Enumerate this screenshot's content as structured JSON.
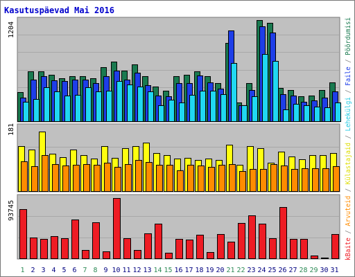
{
  "title": "Kasutuspäevad Mai 2016",
  "chart_data": {
    "type": "bar",
    "categories": [
      "1",
      "2",
      "3",
      "4",
      "5",
      "6",
      "7",
      "8",
      "9",
      "10",
      "11",
      "12",
      "13",
      "14",
      "15",
      "16",
      "17",
      "18",
      "19",
      "20",
      "21",
      "22",
      "23",
      "24",
      "25",
      "26",
      "27",
      "28",
      "29",
      "30",
      "31"
    ],
    "weekend_days": [
      "1",
      "7",
      "8",
      "14",
      "15",
      "21",
      "22",
      "28",
      "29"
    ],
    "panels": [
      {
        "name": "top",
        "axis_max_label": "1204",
        "ylim": [
          0,
          1204
        ],
        "series": [
          {
            "name": "Pöördumisi",
            "color": "#1a7a50",
            "values": [
              355,
              600,
              600,
              560,
              520,
              540,
              540,
              520,
              650,
              710,
              610,
              680,
              540,
              420,
              370,
              540,
              560,
              600,
              540,
              460,
              930,
              230,
              460,
              1200,
              1170,
              400,
              380,
              300,
              310,
              380,
              470
            ]
          },
          {
            "name": "Faile",
            "color": "#1e3ee8",
            "values": [
              290,
              500,
              540,
              490,
              480,
              500,
              500,
              460,
              540,
              610,
              500,
              580,
              430,
              310,
              300,
              460,
              460,
              550,
              470,
              390,
              1080,
              200,
              380,
              1130,
              1060,
              330,
              310,
              240,
              250,
              290,
              360
            ]
          },
          {
            "name": "Lehekülgi",
            "color": "#20d8f2",
            "values": [
              240,
              270,
              410,
              360,
              310,
              320,
              410,
              360,
              370,
              480,
              440,
              420,
              360,
              200,
              260,
              230,
              320,
              370,
              370,
              330,
              700,
              200,
              300,
              800,
              720,
              150,
              210,
              200,
              180,
              170,
              230
            ]
          }
        ]
      },
      {
        "name": "middle",
        "axis_max_label": "181",
        "ylim": [
          0,
          181
        ],
        "series": [
          {
            "name": "Külastajaid",
            "color": "#ffff10",
            "values": [
              127,
              118,
              168,
              105,
              97,
              118,
              102,
              92,
              127,
              95,
              122,
              128,
              137,
              108,
              103,
              93,
              95,
              88,
              92,
              88,
              130,
              75,
              127,
              122,
              80,
              112,
              98,
              91,
              103,
              103,
              107
            ]
          },
          {
            "name": "Arvuteid",
            "color": "#ff8c00",
            "values": [
              84,
              72,
              103,
              77,
              73,
              75,
              77,
              75,
              80,
              70,
              77,
              88,
              82,
              76,
              75,
              59,
              76,
              73,
              70,
              76,
              77,
              58,
              64,
              64,
              77,
              73,
              63,
              66,
              66,
              66,
              72
            ]
          }
        ]
      },
      {
        "name": "bottom",
        "axis_max_label": "93745",
        "ylim": [
          0,
          93745
        ],
        "series": [
          {
            "name": "kBaite",
            "color": "#ee1c24",
            "values": [
              76000,
              32500,
              31000,
              35000,
              32000,
              60000,
              14000,
              56000,
              12000,
              93000,
              32000,
              14000,
              39000,
              54000,
              10000,
              31000,
              30000,
              37000,
              11000,
              38000,
              26000,
              55000,
              66000,
              54000,
              32000,
              79000,
              31000,
              31000,
              5000,
              2000,
              38000
            ]
          }
        ]
      }
    ],
    "legend": [
      "Pöördumisi",
      "Faile",
      "Lehekülgi",
      "Külastajaid",
      "Arvuteid",
      "kBaite"
    ]
  }
}
